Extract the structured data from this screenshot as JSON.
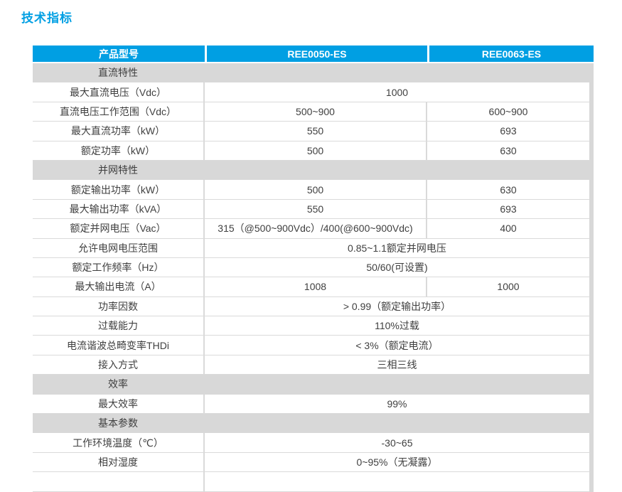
{
  "page": {
    "title": "技术指标"
  },
  "colors": {
    "accent_blue": "#009FE3",
    "section_gray": "#D8D8D8",
    "border_gray": "#DADADA",
    "header_text": "#FFFFFF",
    "body_text": "#3F3F3F"
  },
  "table": {
    "columns": [
      "产品型号",
      "REE0050-ES",
      "REE0063-ES"
    ],
    "rows": [
      {
        "type": "section",
        "label": "直流特性"
      },
      {
        "type": "data",
        "label": "最大直流电压（Vdc）",
        "span": "1000"
      },
      {
        "type": "data",
        "label": "直流电压工作范围（Vdc）",
        "v1": "500~900",
        "v2": "600~900"
      },
      {
        "type": "data",
        "label": "最大直流功率（kW）",
        "v1": "550",
        "v2": "693"
      },
      {
        "type": "data",
        "label": "额定功率（kW）",
        "v1": "500",
        "v2": "630"
      },
      {
        "type": "section",
        "label": "并网特性"
      },
      {
        "type": "data",
        "label": "额定输出功率（kW）",
        "v1": "500",
        "v2": "630"
      },
      {
        "type": "data",
        "label": "最大输出功率（kVA）",
        "v1": "550",
        "v2": "693"
      },
      {
        "type": "data",
        "label": "额定并网电压（Vac）",
        "v1": "315（@500~900Vdc）/400(@600~900Vdc)",
        "v2": "400"
      },
      {
        "type": "data",
        "label": "允许电网电压范围",
        "span": "0.85~1.1额定并网电压"
      },
      {
        "type": "data",
        "label": "额定工作频率（Hz）",
        "span": "50/60(可设置)"
      },
      {
        "type": "data",
        "label": "最大输出电流（A）",
        "v1": "1008",
        "v2": "1000"
      },
      {
        "type": "data",
        "label": "功率因数",
        "span": "> 0.99（额定输出功率）"
      },
      {
        "type": "data",
        "label": "过载能力",
        "span": "110%过载"
      },
      {
        "type": "data",
        "label": "电流谐波总畸变率THDi",
        "span": "< 3%（额定电流）"
      },
      {
        "type": "data",
        "label": "接入方式",
        "span": "三相三线"
      },
      {
        "type": "section",
        "label": "效率"
      },
      {
        "type": "data",
        "label": "最大效率",
        "span": "99%"
      },
      {
        "type": "section",
        "label": "基本参数"
      },
      {
        "type": "data",
        "label": "工作环境温度（℃）",
        "span": "-30~65"
      },
      {
        "type": "data",
        "label": "相对湿度",
        "span": "0~95%（无凝露）"
      },
      {
        "type": "partial",
        "label": "",
        "span": ""
      }
    ]
  }
}
